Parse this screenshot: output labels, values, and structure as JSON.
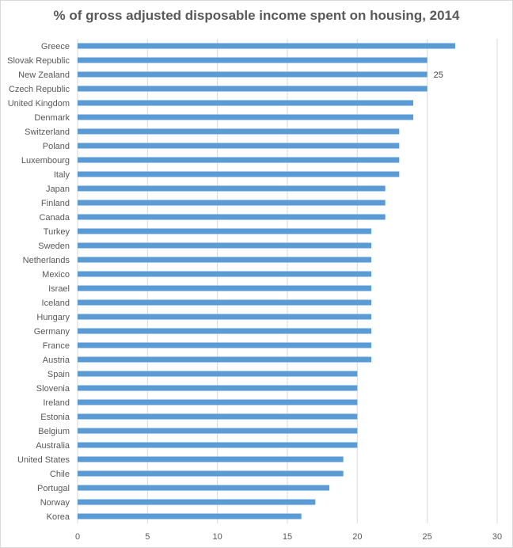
{
  "chart_data": {
    "type": "bar",
    "orientation": "horizontal",
    "title": "% of gross adjusted disposable income spent on housing, 2014",
    "xlabel": "",
    "ylabel": "",
    "xlim": [
      0,
      30
    ],
    "xticks": [
      0,
      5,
      10,
      15,
      20,
      25,
      30
    ],
    "grid": true,
    "bar_color": "#5b9bd5",
    "categories": [
      "Greece",
      "Slovak Republic",
      "New Zealand",
      "Czech Republic",
      "United Kingdom",
      "Denmark",
      "Switzerland",
      "Poland",
      "Luxembourg",
      "Italy",
      "Japan",
      "Finland",
      "Canada",
      "Turkey",
      "Sweden",
      "Netherlands",
      "Mexico",
      "Israel",
      "Iceland",
      "Hungary",
      "Germany",
      "France",
      "Austria",
      "Spain",
      "Slovenia",
      "Ireland",
      "Estonia",
      "Belgium",
      "Australia",
      "United States",
      "Chile",
      "Portugal",
      "Norway",
      "Korea"
    ],
    "values": [
      27,
      25,
      25,
      25,
      24,
      24,
      23,
      23,
      23,
      23,
      22,
      22,
      22,
      21,
      21,
      21,
      21,
      21,
      21,
      21,
      21,
      21,
      21,
      20,
      20,
      20,
      20,
      20,
      20,
      19,
      19,
      18,
      17,
      16
    ],
    "data_labels": [
      {
        "category": "New Zealand",
        "text": "25"
      }
    ]
  }
}
